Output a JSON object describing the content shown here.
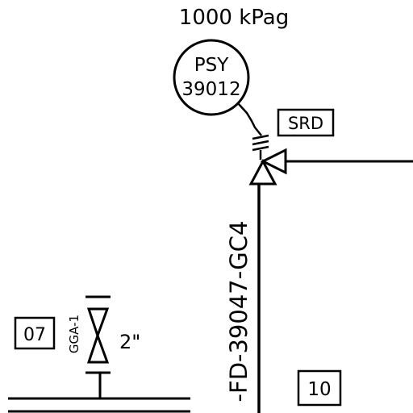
{
  "set_pressure": "1000 kPag",
  "instrument": {
    "tag_type": "PSY",
    "tag_number": "39012"
  },
  "safety_relief_label": "SRD",
  "line_number": "-FD-39047-GC4",
  "drain_valve": {
    "tag": "GGA-1",
    "size": "2\""
  },
  "box_left": "07",
  "box_right": "10",
  "colors": {
    "ink": "#000000",
    "background": "#ffffff"
  }
}
